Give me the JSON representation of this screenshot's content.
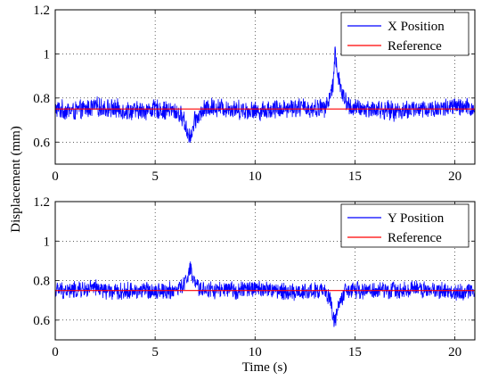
{
  "figure": {
    "ylabel": "Displacement (mm)",
    "xlabel": "Time (s)"
  },
  "chart_data": [
    {
      "type": "line",
      "xlim": [
        0,
        21
      ],
      "ylim": [
        0.5,
        1.2
      ],
      "x_ticks": [
        "0",
        "5",
        "10",
        "15",
        "20"
      ],
      "y_ticks": [
        "0.6",
        "0.8",
        "1",
        "1.2"
      ],
      "grid": true,
      "legend_position": "top-right",
      "series": [
        {
          "name": "X Position",
          "color": "#0000ff",
          "x": [
            0,
            1,
            2,
            3,
            4,
            5,
            6,
            6.4,
            6.6,
            6.8,
            7.0,
            7.5,
            8,
            9,
            10,
            11,
            12,
            13,
            13.6,
            13.9,
            14.0,
            14.1,
            14.3,
            14.6,
            15,
            16,
            17,
            18,
            19,
            20,
            21
          ],
          "y": [
            0.75,
            0.74,
            0.76,
            0.75,
            0.74,
            0.75,
            0.74,
            0.71,
            0.65,
            0.62,
            0.7,
            0.75,
            0.76,
            0.75,
            0.74,
            0.75,
            0.76,
            0.75,
            0.76,
            0.86,
            1.02,
            0.93,
            0.83,
            0.77,
            0.75,
            0.75,
            0.74,
            0.75,
            0.75,
            0.76,
            0.75
          ],
          "noise_amplitude": 0.05
        },
        {
          "name": "Reference",
          "color": "#ff0000",
          "x": [
            0,
            6.62,
            6.62,
            13.94,
            13.94,
            21
          ],
          "y": [
            0.75,
            0.75,
            0.75,
            0.75,
            0.75,
            0.75
          ]
        }
      ]
    },
    {
      "type": "line",
      "xlim": [
        0,
        21
      ],
      "ylim": [
        0.5,
        1.2
      ],
      "x_ticks": [
        "0",
        "5",
        "10",
        "15",
        "20"
      ],
      "y_ticks": [
        "0.6",
        "0.8",
        "1",
        "1.2"
      ],
      "grid": true,
      "legend_position": "top-right",
      "series": [
        {
          "name": "Y Position",
          "color": "#0000ff",
          "x": [
            0,
            1,
            2,
            3,
            4,
            5,
            6,
            6.4,
            6.6,
            6.75,
            6.9,
            7.2,
            8,
            9,
            10,
            11,
            12,
            13,
            13.5,
            13.8,
            13.9,
            14.0,
            14.2,
            14.5,
            15,
            16,
            17,
            18,
            19,
            20,
            21
          ],
          "y": [
            0.75,
            0.75,
            0.76,
            0.74,
            0.75,
            0.75,
            0.75,
            0.77,
            0.82,
            0.86,
            0.8,
            0.76,
            0.75,
            0.75,
            0.76,
            0.75,
            0.74,
            0.75,
            0.74,
            0.7,
            0.62,
            0.6,
            0.68,
            0.74,
            0.75,
            0.75,
            0.75,
            0.76,
            0.75,
            0.74,
            0.75
          ],
          "noise_amplitude": 0.05
        },
        {
          "name": "Reference",
          "color": "#ff0000",
          "x": [
            0,
            21
          ],
          "y": [
            0.75,
            0.75
          ]
        }
      ]
    }
  ]
}
